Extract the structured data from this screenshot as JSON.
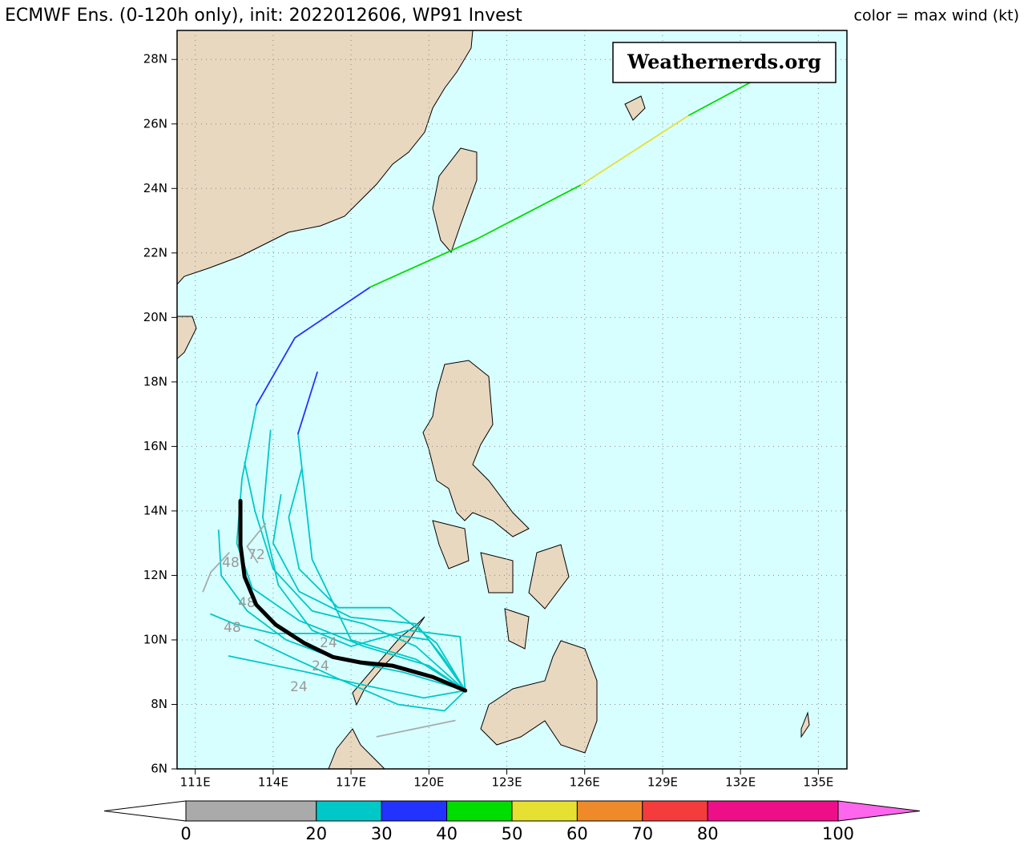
{
  "chart_data": {
    "type": "track-map",
    "title": "ECMWF Ens. (0-120h only), init: 2022012606, WP91 Invest",
    "legend_title": "color = max wind (kt)",
    "watermark": "Weathernerds.org",
    "background": "#d8ffff",
    "grid": true,
    "xlim": [
      110.3,
      136.1
    ],
    "ylim": [
      6,
      28.9
    ],
    "xticks": [
      {
        "value": 111,
        "label": "111E"
      },
      {
        "value": 114,
        "label": "114E"
      },
      {
        "value": 117,
        "label": "117E"
      },
      {
        "value": 120,
        "label": "120E"
      },
      {
        "value": 123,
        "label": "123E"
      },
      {
        "value": 126,
        "label": "126E"
      },
      {
        "value": 129,
        "label": "129E"
      },
      {
        "value": 132,
        "label": "132E"
      },
      {
        "value": 135,
        "label": "135E"
      }
    ],
    "yticks": [
      {
        "value": 6,
        "label": "6N"
      },
      {
        "value": 8,
        "label": "8N"
      },
      {
        "value": 10,
        "label": "10N"
      },
      {
        "value": 12,
        "label": "12N"
      },
      {
        "value": 14,
        "label": "14N"
      },
      {
        "value": 16,
        "label": "16N"
      },
      {
        "value": 18,
        "label": "18N"
      },
      {
        "value": 20,
        "label": "20N"
      },
      {
        "value": 22,
        "label": "22N"
      },
      {
        "value": 24,
        "label": "24N"
      },
      {
        "value": 26,
        "label": "26N"
      },
      {
        "value": 28,
        "label": "28N"
      }
    ],
    "tracks": [
      {
        "color": "#00c8c8",
        "lon": [
          121.4,
          119.5,
          117.5,
          115.5,
          114,
          113.3,
          112.9
        ],
        "lat": [
          8.43,
          9.8,
          10.5,
          10.9,
          12.2,
          14,
          15.5
        ]
      },
      {
        "color": "#00c8c8",
        "lon": [
          121.4,
          119,
          116.5,
          114.5,
          113,
          112,
          111.9
        ],
        "lat": [
          8.43,
          9.0,
          9.4,
          10.0,
          10.9,
          12,
          13.4
        ]
      },
      {
        "color": "#00c8c8",
        "lon": [
          121.4,
          120,
          118.3,
          116,
          114,
          112.5,
          111.6
        ],
        "lat": [
          8.43,
          10.0,
          10.2,
          10.2,
          10.2,
          10.5,
          10.8
        ]
      },
      {
        "color": "#00c8c8",
        "lon": [
          121.4,
          120.5,
          119.5,
          117,
          115,
          114,
          114.3
        ],
        "lat": [
          8.43,
          9.5,
          10.5,
          10.7,
          11.5,
          13,
          14.5
        ]
      },
      {
        "color": "#00c8c8",
        "lon": [
          121.4,
          119.8,
          117.5,
          115.3,
          113.5,
          112.3
        ],
        "lat": [
          8.43,
          8.2,
          8.6,
          9.0,
          9.3,
          9.5
        ]
      },
      {
        "color": "#00c8c8",
        "lon": [
          121.4,
          120.3,
          118.5,
          116.5,
          115,
          114.6,
          115.1
        ],
        "lat": [
          8.43,
          9.9,
          11,
          11,
          12.2,
          13.8,
          15.3
        ]
      },
      {
        "color": "#00c8c8",
        "lon": [
          121.4,
          121.2,
          119.2,
          117,
          115.5,
          114.2,
          113.6,
          113.9
        ],
        "lat": [
          8.43,
          10.1,
          10.3,
          9.8,
          10.3,
          11.7,
          13.8,
          16.5
        ]
      },
      {
        "color": "#00c8c8",
        "lon": [
          121.4,
          120.6,
          118.8,
          116.5,
          114.6,
          113.3
        ],
        "lat": [
          8.43,
          7.8,
          8.0,
          8.8,
          9.5,
          10.0
        ]
      },
      {
        "color": "#00c8c8",
        "lon": [
          121.4,
          120,
          117.5,
          115,
          113.2,
          112.6,
          112.8,
          113.36
        ],
        "lat": [
          8.43,
          9.2,
          9.8,
          10.6,
          11.6,
          13,
          15,
          17.29
        ]
      },
      {
        "color": "#2233ff",
        "lon": [
          113.36,
          114.84,
          117.74
        ],
        "lat": [
          17.29,
          19.37,
          20.94
        ]
      },
      {
        "color": "#00dd00",
        "lon": [
          117.74,
          121.84,
          125.86
        ],
        "lat": [
          20.94,
          22.43,
          24.11
        ]
      },
      {
        "color": "#e6e033",
        "lon": [
          125.86,
          130.02
        ],
        "lat": [
          24.11,
          26.27
        ]
      },
      {
        "color": "#00dd00",
        "lon": [
          130.02,
          132.5
        ],
        "lat": [
          26.27,
          27.34
        ]
      },
      {
        "color": "#00c8c8",
        "lon": [
          121.4,
          119.5,
          117,
          115.5,
          114.96
        ],
        "lat": [
          8.43,
          9.4,
          10.0,
          12.5,
          16.4
        ]
      },
      {
        "color": "#2233ff",
        "lon": [
          114.96,
          115.7
        ],
        "lat": [
          16.4,
          18.3
        ]
      },
      {
        "color": "#aaaaaa",
        "lon": [
          121.0,
          118.0
        ],
        "lat": [
          7.5,
          7.0
        ]
      },
      {
        "color": "#aaaaaa",
        "lon": [
          113.4,
          113.0,
          113.7
        ],
        "lat": [
          12.4,
          12.9,
          13.6
        ]
      },
      {
        "color": "#aaaaaa",
        "lon": [
          112.3,
          111.6,
          111.3
        ],
        "lat": [
          12.7,
          12.1,
          11.5
        ]
      }
    ],
    "mean_track": {
      "color": "#000000",
      "lon": [
        121.4,
        120.15,
        118.6,
        117.37,
        116.3,
        115.2,
        114.1,
        113.35,
        112.9,
        112.74,
        112.74
      ],
      "lat": [
        8.43,
        8.85,
        9.2,
        9.3,
        9.47,
        9.9,
        10.47,
        11.09,
        11.96,
        12.95,
        14.31
      ]
    },
    "track_labels": [
      "72",
      "48",
      "48",
      "48",
      "24",
      "24",
      "24"
    ],
    "colorbar": {
      "bounds": [
        0,
        20,
        30,
        40,
        50,
        60,
        70,
        80,
        100
      ],
      "colors": [
        "#aaaaaa",
        "#00c8c8",
        "#2233ff",
        "#00dd00",
        "#e6e033",
        "#ef8a2a",
        "#f53c3c",
        "#ee0f88"
      ],
      "under": "#ffffff",
      "over": "#ff66ee"
    }
  }
}
